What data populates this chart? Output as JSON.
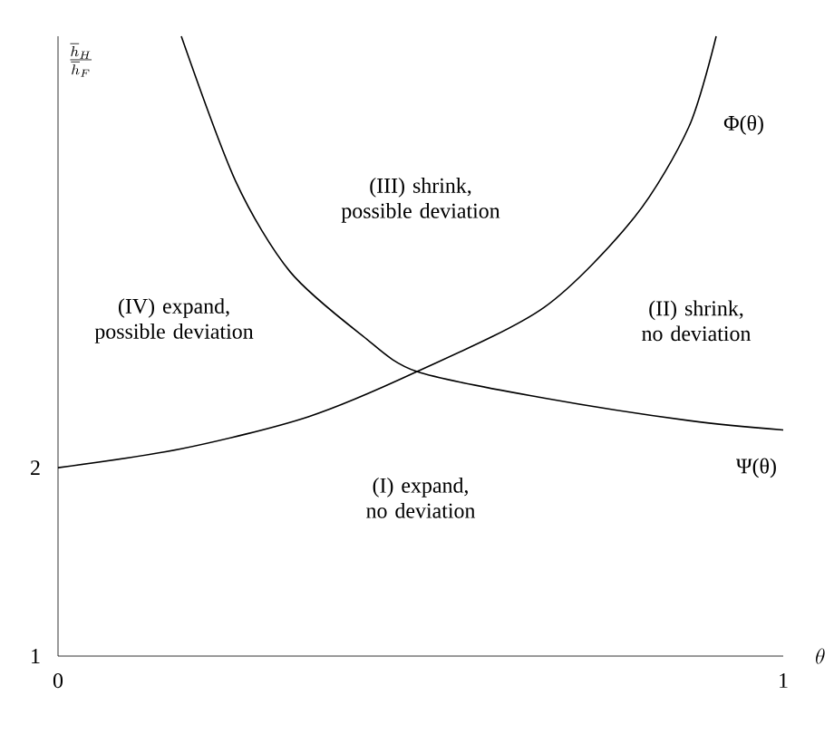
{
  "chart_data": {
    "type": "line",
    "xlabel": "\\theta",
    "ylabel": "\\frac{\\overline{h}_H}{\\overline{h}_F}",
    "xlim": [
      0,
      1
    ],
    "xticks": [
      0,
      1
    ],
    "ylim": [
      1,
      4.29
    ],
    "yticks": [
      1,
      2
    ],
    "grid": false,
    "marker": "none",
    "line_style": "solid",
    "series": [
      {
        "name": "Φ(θ)",
        "color": "#000000",
        "x": [
          0,
          0.17,
          0.345,
          0.495,
          0.67,
          0.795,
          0.87,
          0.9075
        ],
        "values": [
          2,
          2.1,
          2.27,
          2.51,
          2.85,
          3.33,
          3.81,
          4.29
        ]
      },
      {
        "name": "Ψ(θ)",
        "color": "#000000",
        "x": [
          0.17,
          0.245,
          0.32,
          0.42,
          0.495,
          0.67,
          0.87,
          1
        ],
        "values": [
          4.29,
          3.52,
          3.04,
          2.7,
          2.51,
          2.37,
          2.25,
          2.2
        ]
      }
    ],
    "annotations": [
      "(I) expand, no deviation",
      "(II) shrink, no deviation",
      "(III) shrink, possible deviation",
      "(IV) expand, possible deviation"
    ]
  }
}
